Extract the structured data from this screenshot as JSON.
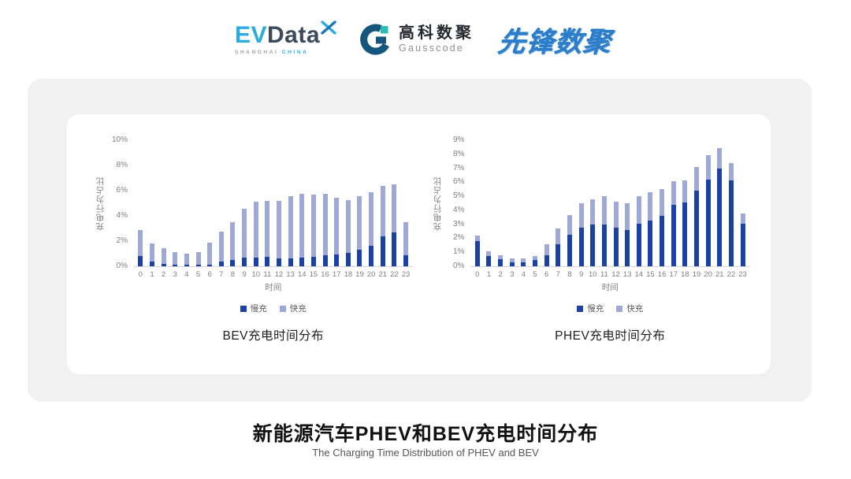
{
  "colors": {
    "slow": "#1c41a5",
    "fast": "#9fa9d8"
  },
  "header": {
    "evdata": {
      "ev": "EV",
      "data": "Data",
      "sub_left": "SHANGHAI",
      "sub_right": "CHINA"
    },
    "gausscode": {
      "cn": "高科数聚",
      "en": "Gausscode"
    },
    "xianfeng": "先锋数聚"
  },
  "footer": {
    "title": "新能源汽车PHEV和BEV充电时间分布",
    "subtitle": "The Charging Time Distribution of PHEV and BEV"
  },
  "chart_data": [
    {
      "type": "bar",
      "stacked": true,
      "caption": "BEV充电时间分布",
      "ylabel": "充电行为占比",
      "xlabel": "时间",
      "ylim": [
        0,
        10
      ],
      "y_max": 10,
      "y_tick_step": 2,
      "y_tick_labels": [
        "0%",
        "2%",
        "4%",
        "6%",
        "8%",
        "10%"
      ],
      "grid": false,
      "legend_position": "bottom",
      "categories": [
        0,
        1,
        2,
        3,
        4,
        5,
        6,
        7,
        8,
        9,
        10,
        11,
        12,
        13,
        14,
        15,
        16,
        17,
        18,
        19,
        20,
        21,
        22,
        23
      ],
      "legend": [
        "慢充",
        "快充"
      ],
      "series": [
        {
          "name": "慢充",
          "color_key": "slow",
          "values": [
            0.8,
            0.35,
            0.2,
            0.1,
            0.1,
            0.1,
            0.15,
            0.35,
            0.5,
            0.7,
            0.7,
            0.75,
            0.65,
            0.65,
            0.7,
            0.75,
            0.85,
            0.95,
            1.05,
            1.3,
            1.6,
            2.4,
            2.7,
            0.9
          ]
        },
        {
          "name": "快充",
          "color_key": "fast",
          "values": [
            2.05,
            1.45,
            1.25,
            1.0,
            0.9,
            1.0,
            1.75,
            2.4,
            3.0,
            3.85,
            4.45,
            4.45,
            4.55,
            4.9,
            5.05,
            4.95,
            4.9,
            4.5,
            4.2,
            4.25,
            4.25,
            3.95,
            3.8,
            2.6
          ]
        }
      ]
    },
    {
      "type": "bar",
      "stacked": true,
      "caption": "PHEV充电时间分布",
      "ylabel": "充电行为占比",
      "xlabel": "时间",
      "ylim": [
        0,
        9
      ],
      "y_max": 9,
      "y_tick_step": 1,
      "y_tick_labels": [
        "0%",
        "1%",
        "2%",
        "3%",
        "4%",
        "5%",
        "6%",
        "7%",
        "8%",
        "9%"
      ],
      "grid": false,
      "legend_position": "bottom",
      "categories": [
        0,
        1,
        2,
        3,
        4,
        5,
        6,
        7,
        8,
        9,
        10,
        11,
        12,
        13,
        14,
        15,
        16,
        17,
        18,
        19,
        20,
        21,
        22,
        23
      ],
      "legend": [
        "慢充",
        "快充"
      ],
      "series": [
        {
          "name": "慢充",
          "color_key": "slow",
          "values": [
            1.8,
            0.75,
            0.5,
            0.3,
            0.3,
            0.45,
            0.8,
            1.6,
            2.25,
            2.75,
            3.0,
            3.0,
            2.75,
            2.6,
            3.05,
            3.25,
            3.6,
            4.4,
            4.55,
            5.4,
            6.2,
            7.0,
            6.15,
            3.05
          ]
        },
        {
          "name": "快充",
          "color_key": "fast",
          "values": [
            0.4,
            0.35,
            0.3,
            0.25,
            0.25,
            0.3,
            0.8,
            1.1,
            1.4,
            1.75,
            1.8,
            2.0,
            1.85,
            1.9,
            1.95,
            2.05,
            1.9,
            1.7,
            1.6,
            1.7,
            1.75,
            1.45,
            1.2,
            0.75
          ]
        }
      ]
    }
  ]
}
